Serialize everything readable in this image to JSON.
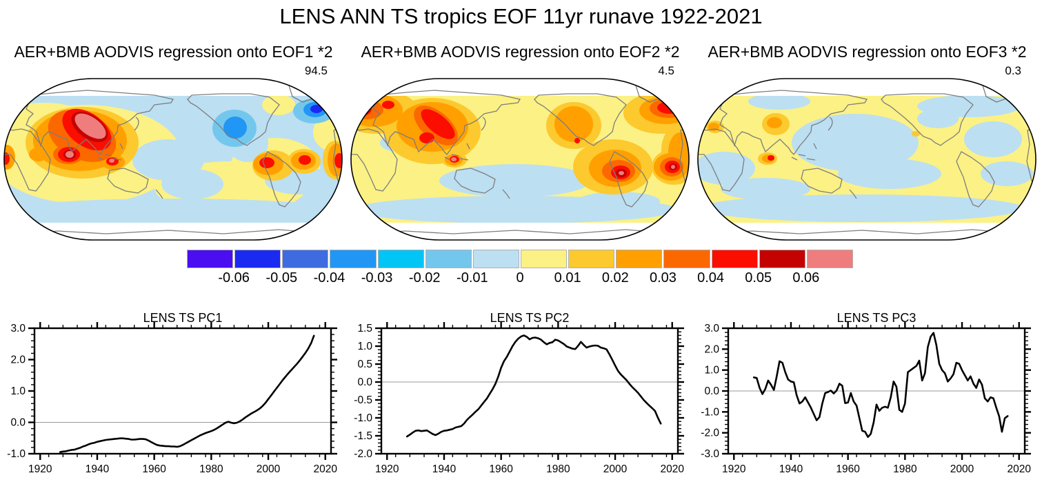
{
  "title": "LENS ANN TS tropics EOF 11yr runave 1922-2021",
  "panels": [
    {
      "title": "AER+BMB AODVIS regression onto EOF1 *2",
      "variance": "94.5"
    },
    {
      "title": "AER+BMB AODVIS regression onto EOF2 *2",
      "variance": "4.5"
    },
    {
      "title": "AER+BMB AODVIS regression onto EOF3 *2",
      "variance": "0.3"
    }
  ],
  "colorbar": {
    "colors": [
      "#4a0ef0",
      "#1b2af0",
      "#3e6ce0",
      "#2196f5",
      "#00c5f5",
      "#74c7ec",
      "#bcdff2",
      "#fbf185",
      "#fcc92e",
      "#ffa000",
      "#fc6800",
      "#fb0d00",
      "#c40202",
      "#ef7d7d"
    ],
    "labels": [
      "-0.06",
      "-0.05",
      "-0.04",
      "-0.03",
      "-0.02",
      "-0.01",
      "0",
      "0.01",
      "0.02",
      "0.03",
      "0.04",
      "0.05",
      "0.06"
    ],
    "outline_color": "#b0b0b0"
  },
  "maps": [
    {
      "name": "eof1",
      "base": 6,
      "blobs": [
        [
          120,
          112,
          138,
          72,
          0,
          7
        ],
        [
          60,
          65,
          70,
          28,
          0,
          7
        ],
        [
          330,
          160,
          110,
          38,
          0,
          7
        ],
        [
          395,
          130,
          65,
          42,
          0,
          7
        ],
        [
          400,
          40,
          24,
          15,
          0,
          7
        ],
        [
          480,
          80,
          30,
          28,
          0,
          7
        ],
        [
          240,
          120,
          52,
          30,
          0,
          6
        ],
        [
          275,
          155,
          45,
          22,
          0,
          6
        ],
        [
          355,
          95,
          30,
          28,
          0,
          6
        ],
        [
          430,
          150,
          50,
          20,
          0,
          6
        ],
        [
          247,
          196,
          255,
          20,
          0,
          6
        ],
        [
          115,
          95,
          82,
          52,
          0,
          8
        ],
        [
          392,
          128,
          30,
          22,
          0,
          8
        ],
        [
          437,
          122,
          24,
          18,
          0,
          8
        ],
        [
          482,
          120,
          18,
          28,
          0,
          8
        ],
        [
          112,
          92,
          68,
          44,
          0,
          9
        ],
        [
          52,
          112,
          14,
          10,
          0,
          9
        ],
        [
          160,
          123,
          17,
          11,
          0,
          9
        ],
        [
          385,
          126,
          22,
          16,
          0,
          9
        ],
        [
          436,
          121,
          18,
          13,
          0,
          9
        ],
        [
          484,
          120,
          13,
          24,
          0,
          9
        ],
        [
          6,
          116,
          12,
          18,
          0,
          9
        ],
        [
          115,
          85,
          52,
          34,
          25,
          10
        ],
        [
          95,
          112,
          22,
          14,
          0,
          10
        ],
        [
          122,
          76,
          40,
          24,
          35,
          11
        ],
        [
          96,
          112,
          16,
          11,
          0,
          11
        ],
        [
          383,
          124,
          11,
          8,
          0,
          11
        ],
        [
          438,
          120,
          9,
          7,
          0,
          11
        ],
        [
          488,
          121,
          7,
          11,
          0,
          11
        ],
        [
          4,
          118,
          6,
          9,
          0,
          11
        ],
        [
          159,
          122,
          9,
          6,
          0,
          11
        ],
        [
          126,
          72,
          30,
          17,
          35,
          12
        ],
        [
          97,
          112,
          9,
          7,
          0,
          12
        ],
        [
          127,
          71,
          26,
          13,
          35,
          13
        ],
        [
          97,
          112,
          6,
          5,
          0,
          13
        ],
        [
          158,
          121,
          4,
          3,
          0,
          13
        ],
        [
          336,
          74,
          32,
          27,
          0,
          5
        ],
        [
          337,
          73,
          17,
          16,
          0,
          3
        ],
        [
          451,
          49,
          30,
          18,
          0,
          5
        ],
        [
          453,
          47,
          17,
          11,
          0,
          3
        ],
        [
          455,
          46,
          9,
          6,
          0,
          1
        ]
      ]
    },
    {
      "name": "eof2",
      "base": 7,
      "blobs": [
        [
          70,
          95,
          26,
          13,
          0,
          6
        ],
        [
          240,
          150,
          110,
          24,
          0,
          6
        ],
        [
          390,
          180,
          60,
          14,
          0,
          6
        ],
        [
          240,
          192,
          235,
          20,
          0,
          6
        ],
        [
          120,
          78,
          70,
          48,
          0,
          8
        ],
        [
          40,
          50,
          60,
          32,
          0,
          8
        ],
        [
          452,
          52,
          55,
          30,
          0,
          8
        ],
        [
          478,
          105,
          26,
          36,
          0,
          8
        ],
        [
          382,
          130,
          58,
          40,
          0,
          8
        ],
        [
          325,
          70,
          40,
          34,
          0,
          8
        ],
        [
          152,
          120,
          18,
          11,
          0,
          8
        ],
        [
          470,
          130,
          32,
          26,
          0,
          8
        ],
        [
          120,
          72,
          52,
          36,
          0,
          9
        ],
        [
          35,
          48,
          42,
          24,
          0,
          9
        ],
        [
          458,
          48,
          38,
          20,
          0,
          9
        ],
        [
          480,
          108,
          18,
          28,
          0,
          9
        ],
        [
          385,
          132,
          38,
          27,
          0,
          9
        ],
        [
          325,
          68,
          28,
          26,
          0,
          9
        ],
        [
          151,
          120,
          13,
          8,
          0,
          9
        ],
        [
          466,
          130,
          25,
          20,
          0,
          9
        ],
        [
          125,
          70,
          38,
          20,
          40,
          10
        ],
        [
          25,
          47,
          24,
          14,
          0,
          10
        ],
        [
          462,
          45,
          27,
          14,
          0,
          10
        ],
        [
          390,
          136,
          24,
          16,
          0,
          10
        ],
        [
          467,
          130,
          17,
          14,
          0,
          10
        ],
        [
          128,
          68,
          30,
          13,
          40,
          11
        ],
        [
          112,
          88,
          11,
          8,
          0,
          11
        ],
        [
          18,
          46,
          14,
          10,
          0,
          11
        ],
        [
          56,
          40,
          9,
          6,
          0,
          11
        ],
        [
          464,
          44,
          18,
          9,
          0,
          11
        ],
        [
          393,
          138,
          14,
          10,
          0,
          11
        ],
        [
          468,
          130,
          11,
          9,
          0,
          11
        ],
        [
          152,
          119,
          7,
          5,
          0,
          11
        ],
        [
          330,
          92,
          4,
          4,
          0,
          11
        ],
        [
          394,
          139,
          8,
          6,
          0,
          12
        ],
        [
          469,
          130,
          6,
          5,
          0,
          12
        ],
        [
          394,
          139,
          4,
          3,
          0,
          13
        ],
        [
          469,
          130,
          3,
          3,
          0,
          13
        ],
        [
          151,
          119,
          4,
          3,
          0,
          13
        ]
      ]
    },
    {
      "name": "eof3",
      "base": 7,
      "blobs": [
        [
          230,
          95,
          92,
          42,
          0,
          6
        ],
        [
          280,
          140,
          75,
          22,
          0,
          6
        ],
        [
          395,
          42,
          75,
          16,
          0,
          6
        ],
        [
          120,
          35,
          45,
          12,
          0,
          6
        ],
        [
          430,
          90,
          42,
          26,
          0,
          6
        ],
        [
          450,
          140,
          38,
          18,
          0,
          6
        ],
        [
          40,
          132,
          45,
          24,
          0,
          6
        ],
        [
          100,
          162,
          65,
          16,
          0,
          6
        ],
        [
          350,
          60,
          30,
          14,
          0,
          6
        ],
        [
          240,
          190,
          235,
          20,
          0,
          6
        ],
        [
          115,
          68,
          20,
          16,
          0,
          8
        ],
        [
          27,
          72,
          13,
          9,
          0,
          8
        ],
        [
          103,
          118,
          14,
          9,
          0,
          8
        ],
        [
          318,
          82,
          6,
          4,
          0,
          8
        ],
        [
          113,
          66,
          11,
          8,
          0,
          9
        ],
        [
          25,
          72,
          8,
          6,
          0,
          9
        ],
        [
          104,
          118,
          9,
          6,
          0,
          9
        ],
        [
          108,
          117,
          5,
          4,
          0,
          11
        ]
      ]
    }
  ],
  "chart_data": [
    {
      "type": "line",
      "title": "LENS TS PC1",
      "xlim": [
        1918,
        2022
      ],
      "ylim": [
        -1,
        3
      ],
      "xticks": [
        1920,
        1940,
        1960,
        1980,
        2000,
        2020
      ],
      "xticklabels": [
        "1920",
        "1940",
        "1960",
        "1980",
        "2000",
        "2020"
      ],
      "yticks": [
        -1,
        0,
        1,
        2,
        3
      ],
      "yticklabels": [
        "-1.0",
        "0.0",
        "1.0",
        "2.0",
        "3.0"
      ],
      "xminor": 5,
      "yminor": 0.2,
      "zero_line": true,
      "x_start": 1927,
      "x_step": 1,
      "values": [
        -0.95,
        -0.93,
        -0.92,
        -0.9,
        -0.88,
        -0.87,
        -0.84,
        -0.81,
        -0.77,
        -0.74,
        -0.7,
        -0.67,
        -0.65,
        -0.62,
        -0.6,
        -0.58,
        -0.56,
        -0.55,
        -0.54,
        -0.53,
        -0.52,
        -0.51,
        -0.51,
        -0.52,
        -0.53,
        -0.55,
        -0.55,
        -0.54,
        -0.53,
        -0.53,
        -0.54,
        -0.58,
        -0.63,
        -0.68,
        -0.72,
        -0.74,
        -0.75,
        -0.76,
        -0.76,
        -0.77,
        -0.77,
        -0.78,
        -0.76,
        -0.72,
        -0.67,
        -0.62,
        -0.57,
        -0.52,
        -0.47,
        -0.42,
        -0.38,
        -0.34,
        -0.31,
        -0.28,
        -0.24,
        -0.19,
        -0.13,
        -0.07,
        -0.01,
        0.02,
        -0.01,
        -0.03,
        -0.01,
        0.03,
        0.09,
        0.16,
        0.22,
        0.28,
        0.33,
        0.38,
        0.44,
        0.52,
        0.62,
        0.74,
        0.86,
        0.98,
        1.1,
        1.22,
        1.34,
        1.45,
        1.56,
        1.66,
        1.76,
        1.86,
        1.97,
        2.09,
        2.21,
        2.35,
        2.52,
        2.76
      ]
    },
    {
      "type": "line",
      "title": "LENS TS PC2",
      "xlim": [
        1918,
        2022
      ],
      "ylim": [
        -2,
        1.5
      ],
      "xticks": [
        1920,
        1940,
        1960,
        1980,
        2000,
        2020
      ],
      "xticklabels": [
        "1920",
        "1940",
        "1960",
        "1980",
        "2000",
        "2020"
      ],
      "yticks": [
        -2,
        -1.5,
        -1,
        -0.5,
        0,
        0.5,
        1,
        1.5
      ],
      "yticklabels": [
        "-2.0",
        "-1.5",
        "-1.0",
        "-0.5",
        "0.0",
        "0.5",
        "1.0",
        "1.5"
      ],
      "xminor": 5,
      "yminor": 0.1,
      "zero_line": true,
      "x_start": 1927,
      "x_step": 1,
      "values": [
        -1.52,
        -1.47,
        -1.41,
        -1.36,
        -1.35,
        -1.37,
        -1.36,
        -1.35,
        -1.4,
        -1.45,
        -1.48,
        -1.44,
        -1.39,
        -1.36,
        -1.35,
        -1.33,
        -1.31,
        -1.27,
        -1.25,
        -1.23,
        -1.16,
        -1.06,
        -0.98,
        -0.91,
        -0.83,
        -0.76,
        -0.66,
        -0.56,
        -0.46,
        -0.33,
        -0.2,
        -0.05,
        0.15,
        0.4,
        0.58,
        0.7,
        0.85,
        1.0,
        1.12,
        1.21,
        1.27,
        1.3,
        1.26,
        1.19,
        1.23,
        1.24,
        1.22,
        1.18,
        1.11,
        1.05,
        1.09,
        1.11,
        1.18,
        1.16,
        1.11,
        1.06,
        0.99,
        0.96,
        0.93,
        0.92,
        1.01,
        1.12,
        1.03,
        0.96,
        0.99,
        1.01,
        1.02,
        1.01,
        0.96,
        0.94,
        0.91,
        0.77,
        0.62,
        0.46,
        0.31,
        0.21,
        0.13,
        0.05,
        -0.05,
        -0.14,
        -0.22,
        -0.3,
        -0.4,
        -0.5,
        -0.58,
        -0.66,
        -0.73,
        -0.81,
        -1.0,
        -1.16
      ]
    },
    {
      "type": "line",
      "title": "LENS TS PC3",
      "xlim": [
        1918,
        2022
      ],
      "ylim": [
        -3,
        3
      ],
      "xticks": [
        1920,
        1940,
        1960,
        1980,
        2000,
        2020
      ],
      "xticklabels": [
        "1920",
        "1940",
        "1960",
        "1980",
        "2000",
        "2020"
      ],
      "yticks": [
        -3,
        -2,
        -1,
        0,
        1,
        2,
        3
      ],
      "yticklabels": [
        "-3.0",
        "-2.0",
        "-1.0",
        "0.0",
        "1.0",
        "2.0",
        "3.0"
      ],
      "xminor": 5,
      "yminor": 0.2,
      "zero_line": true,
      "x_start": 1927,
      "x_step": 1,
      "values": [
        0.65,
        0.62,
        0.15,
        -0.15,
        0.1,
        0.5,
        0.3,
        0.05,
        0.7,
        1.42,
        1.35,
        0.9,
        0.55,
        0.45,
        0.42,
        -0.2,
        -0.6,
        -0.5,
        -0.3,
        -0.55,
        -0.8,
        -1.1,
        -1.4,
        -1.25,
        -0.6,
        -0.1,
        -0.05,
        0.02,
        -0.12,
        0.02,
        0.35,
        0.25,
        -0.58,
        -0.55,
        -0.1,
        -0.5,
        -0.7,
        -1.3,
        -1.9,
        -1.95,
        -2.2,
        -2.05,
        -1.5,
        -0.65,
        -0.95,
        -0.8,
        -0.75,
        -0.8,
        -0.3,
        0.45,
        0.2,
        -0.9,
        -1.0,
        -0.6,
        0.9,
        1.0,
        1.1,
        1.2,
        1.45,
        0.5,
        0.85,
        2.1,
        2.6,
        2.78,
        2.2,
        1.3,
        1.0,
        0.85,
        0.45,
        0.6,
        0.8,
        1.35,
        1.3,
        1.0,
        0.75,
        0.5,
        0.7,
        0.35,
        0.15,
        0.55,
        0.3,
        -0.35,
        -0.5,
        -0.3,
        -0.35,
        -0.8,
        -1.2,
        -1.95,
        -1.3,
        -1.2
      ]
    }
  ]
}
